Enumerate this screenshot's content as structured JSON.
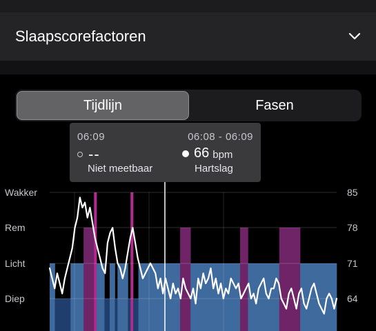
{
  "header": {
    "title": "Slaapscorefactoren",
    "chevron_icon": "chevron-down-icon"
  },
  "tabs": [
    {
      "label": "Tijdlijn",
      "active": true
    },
    {
      "label": "Fasen",
      "active": false
    }
  ],
  "tooltip": {
    "left": {
      "time": "06:09",
      "value": "--",
      "label": "Niet meetbaar"
    },
    "right": {
      "time": "06:08 - 06:09",
      "value": "66",
      "unit": "bpm",
      "label": "Hartslag"
    }
  },
  "colors": {
    "diep": "#1f3e6e",
    "licht": "#3e6a9e",
    "rem": "#6e2467",
    "wakker": "#b02a8f",
    "heart_line": "#ffffff"
  },
  "chart_data": {
    "type": "area",
    "stage_axis": [
      "Wakker",
      "Rem",
      "Licht",
      "Diep"
    ],
    "hr_axis": [
      85,
      78,
      71,
      64
    ],
    "hr_unit": "bpm",
    "stage_segments": [
      {
        "stage": "Licht",
        "duration": 2
      },
      {
        "stage": "Diep",
        "duration": 6
      },
      {
        "stage": "Licht",
        "duration": 5
      },
      {
        "stage": "Rem",
        "duration": 4
      },
      {
        "stage": "Wakker",
        "duration": 1
      },
      {
        "stage": "Licht",
        "duration": 3
      },
      {
        "stage": "Diep",
        "duration": 2
      },
      {
        "stage": "Licht",
        "duration": 2
      },
      {
        "stage": "Diep",
        "duration": 1
      },
      {
        "stage": "Licht",
        "duration": 4
      },
      {
        "stage": "Diep",
        "duration": 1
      },
      {
        "stage": "Wakker",
        "duration": 1
      },
      {
        "stage": "Diep",
        "duration": 2
      },
      {
        "stage": "Licht",
        "duration": 16
      },
      {
        "stage": "Rem",
        "duration": 4
      },
      {
        "stage": "Licht",
        "duration": 19
      },
      {
        "stage": "Rem",
        "duration": 3
      },
      {
        "stage": "Licht",
        "duration": 12
      },
      {
        "stage": "Rem",
        "duration": 8
      },
      {
        "stage": "Licht",
        "duration": 14
      }
    ],
    "heart_rate": [
      70,
      68,
      66,
      69,
      67,
      65,
      68,
      70,
      72,
      74,
      78,
      80,
      84,
      82,
      83,
      80,
      82,
      79,
      76,
      74,
      72,
      70,
      69,
      75,
      77,
      78,
      74,
      71,
      70,
      68,
      70,
      73,
      76,
      78,
      75,
      72,
      70,
      68,
      69,
      70,
      71,
      70,
      69,
      66,
      68,
      65,
      68,
      66,
      64,
      67,
      65,
      66,
      64,
      68,
      66,
      65,
      64,
      66,
      63,
      68,
      66,
      69,
      67,
      68,
      70,
      66,
      68,
      65,
      67,
      64,
      66,
      65,
      68,
      67,
      66,
      67,
      64,
      65,
      66,
      67,
      64,
      65,
      63,
      66,
      67,
      68,
      65,
      64,
      66,
      66,
      68,
      67,
      64,
      63,
      62,
      65,
      66,
      64,
      62,
      65,
      66,
      63,
      62,
      64,
      66,
      67,
      65,
      63,
      62,
      61,
      64,
      65,
      64,
      62,
      64
    ]
  }
}
